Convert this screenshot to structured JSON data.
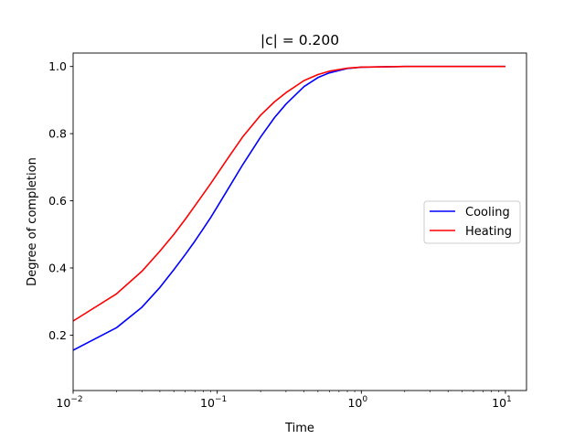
{
  "chart_data": {
    "type": "line",
    "title": "|c| = 0.200",
    "xlabel": "Time",
    "ylabel": "Degree of completion",
    "xscale": "log",
    "xlim": [
      0.01,
      14
    ],
    "ylim": [
      0.035,
      1.04
    ],
    "xticks": [
      {
        "value": 0.01,
        "base": "10",
        "exp": "−2"
      },
      {
        "value": 0.1,
        "base": "10",
        "exp": "−1"
      },
      {
        "value": 1,
        "base": "10",
        "exp": "0"
      },
      {
        "value": 10,
        "base": "10",
        "exp": "1"
      }
    ],
    "yticks": [
      {
        "value": 0.2,
        "label": "0.2"
      },
      {
        "value": 0.4,
        "label": "0.4"
      },
      {
        "value": 0.6,
        "label": "0.6"
      },
      {
        "value": 0.8,
        "label": "0.8"
      },
      {
        "value": 1.0,
        "label": "1.0"
      }
    ],
    "grid": false,
    "legend_position": "center-right",
    "series": [
      {
        "name": "Cooling",
        "color": "#0000ff",
        "points": [
          [
            0.01,
            0.155
          ],
          [
            0.02,
            0.222
          ],
          [
            0.03,
            0.283
          ],
          [
            0.04,
            0.342
          ],
          [
            0.05,
            0.395
          ],
          [
            0.06,
            0.44
          ],
          [
            0.07,
            0.48
          ],
          [
            0.08,
            0.517
          ],
          [
            0.09,
            0.55
          ],
          [
            0.1,
            0.582
          ],
          [
            0.12,
            0.638
          ],
          [
            0.15,
            0.707
          ],
          [
            0.2,
            0.79
          ],
          [
            0.25,
            0.848
          ],
          [
            0.3,
            0.888
          ],
          [
            0.4,
            0.94
          ],
          [
            0.5,
            0.967
          ],
          [
            0.6,
            0.981
          ],
          [
            0.8,
            0.994
          ],
          [
            1,
            0.998
          ],
          [
            2,
            1.0
          ],
          [
            5,
            1.0
          ],
          [
            10,
            1.0
          ]
        ]
      },
      {
        "name": "Heating",
        "color": "#ff0000",
        "points": [
          [
            0.01,
            0.242
          ],
          [
            0.02,
            0.323
          ],
          [
            0.03,
            0.39
          ],
          [
            0.04,
            0.45
          ],
          [
            0.05,
            0.5
          ],
          [
            0.06,
            0.545
          ],
          [
            0.07,
            0.585
          ],
          [
            0.08,
            0.62
          ],
          [
            0.09,
            0.651
          ],
          [
            0.1,
            0.68
          ],
          [
            0.12,
            0.73
          ],
          [
            0.15,
            0.79
          ],
          [
            0.2,
            0.855
          ],
          [
            0.25,
            0.895
          ],
          [
            0.3,
            0.922
          ],
          [
            0.4,
            0.958
          ],
          [
            0.5,
            0.976
          ],
          [
            0.6,
            0.986
          ],
          [
            0.8,
            0.995
          ],
          [
            1,
            0.998
          ],
          [
            2,
            1.0
          ],
          [
            5,
            1.0
          ],
          [
            10,
            1.0
          ]
        ]
      }
    ]
  }
}
